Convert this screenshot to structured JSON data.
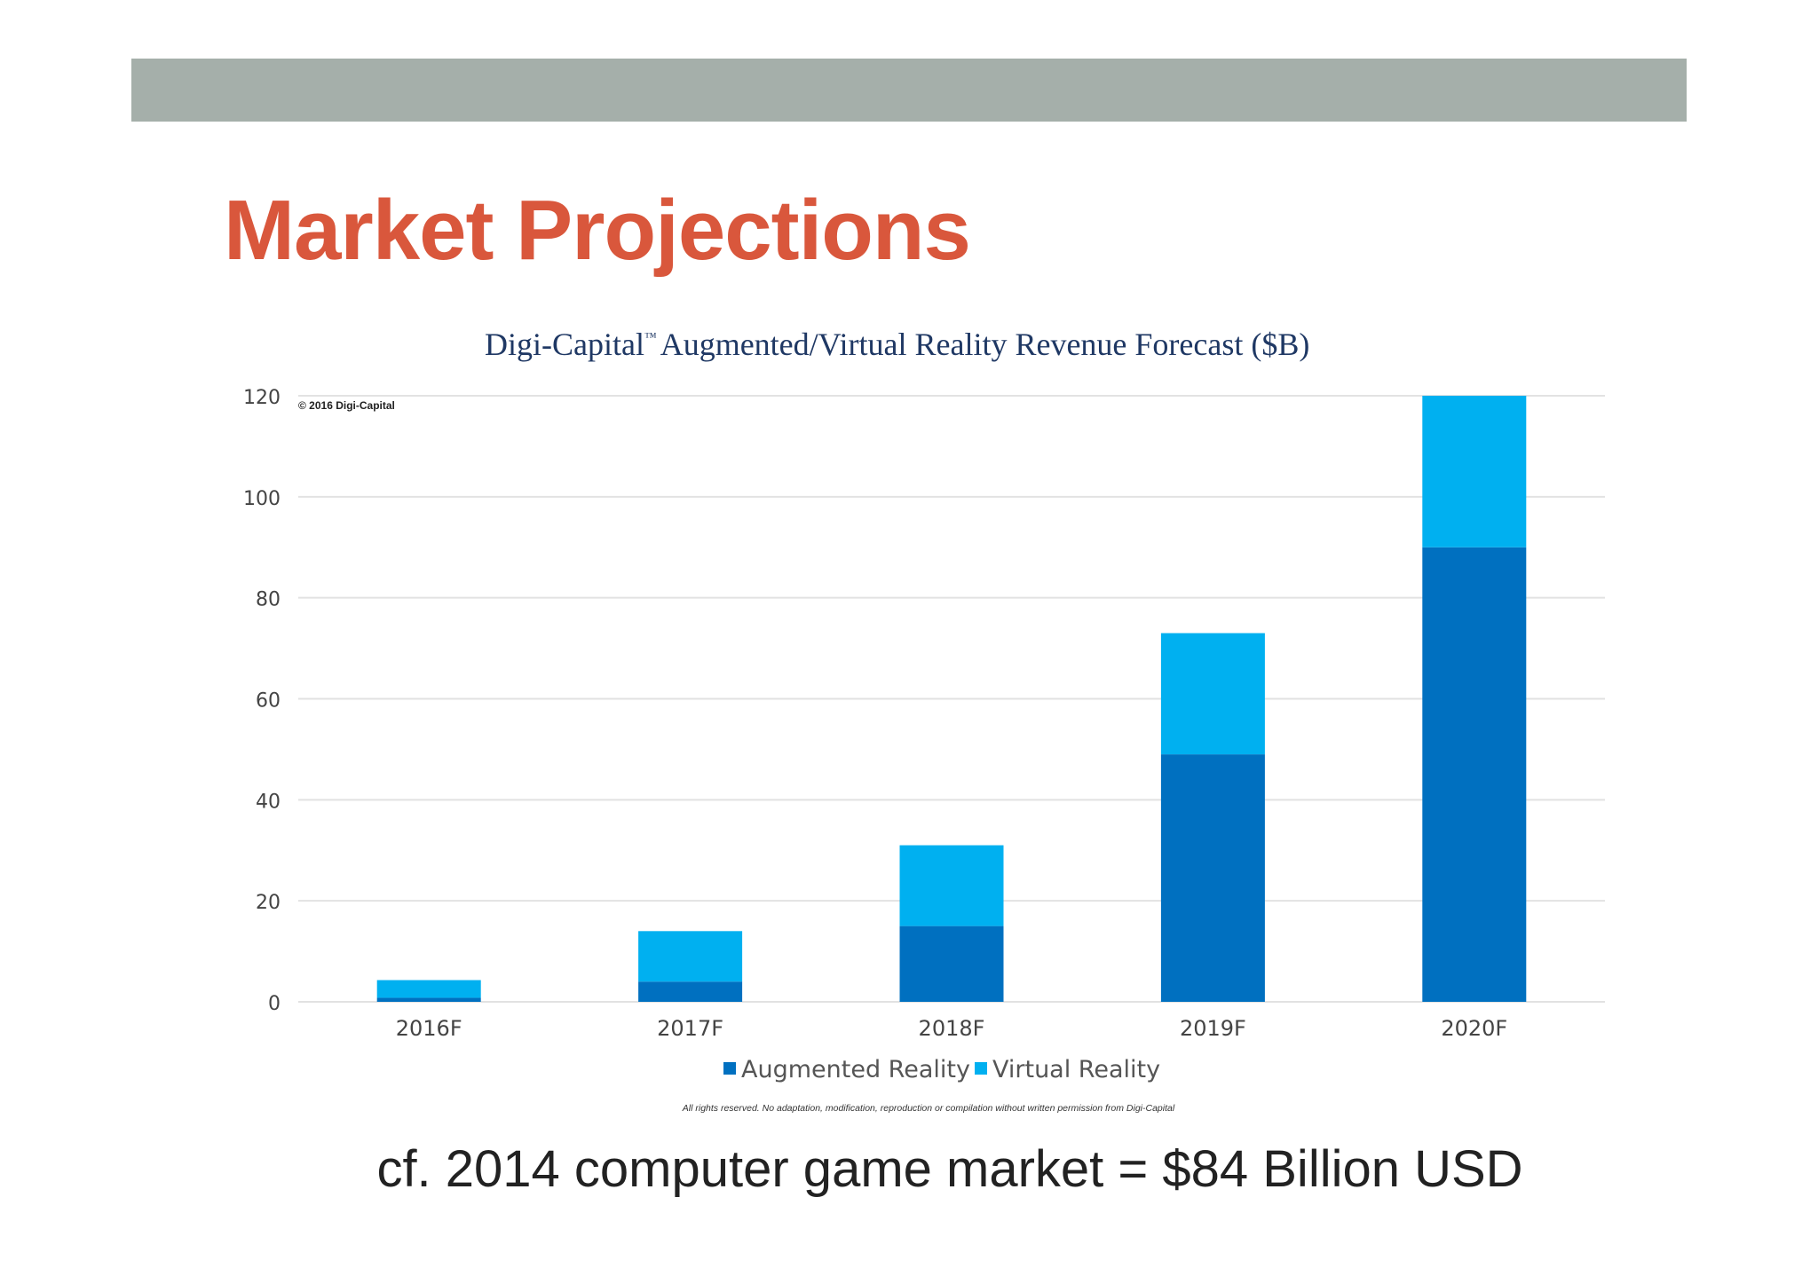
{
  "slide": {
    "title": "Market Projections",
    "note": "cf. 2014 computer game market = $84 Billion USD"
  },
  "colors": {
    "title": "#d9573c",
    "top_bar": "#a5afaa",
    "augmented": "#0070c0",
    "virtual": "#00b0f0",
    "chart_title": "#1f3864"
  },
  "chart_data": {
    "type": "bar",
    "stacked": true,
    "brand": "Digi-Capital",
    "trademark": "™",
    "title": "Augmented/Virtual Reality Revenue Forecast ($B)",
    "copyright": "© 2016 Digi-Capital",
    "rights_notice": "All rights reserved. No adaptation, modification, reproduction or compilation without written permission from Digi-Capital",
    "categories": [
      "2016F",
      "2017F",
      "2018F",
      "2019F",
      "2020F"
    ],
    "series": [
      {
        "name": "Augmented Reality",
        "color": "#0070c0",
        "values": [
          0.8,
          4,
          15,
          49,
          90
        ]
      },
      {
        "name": "Virtual Reality",
        "color": "#00b0f0",
        "values": [
          3.5,
          10,
          16,
          24,
          30
        ]
      }
    ],
    "ylim": [
      0,
      120
    ],
    "yticks": [
      0,
      20,
      40,
      60,
      80,
      100,
      120
    ],
    "grid": true,
    "legend_position": "bottom"
  }
}
